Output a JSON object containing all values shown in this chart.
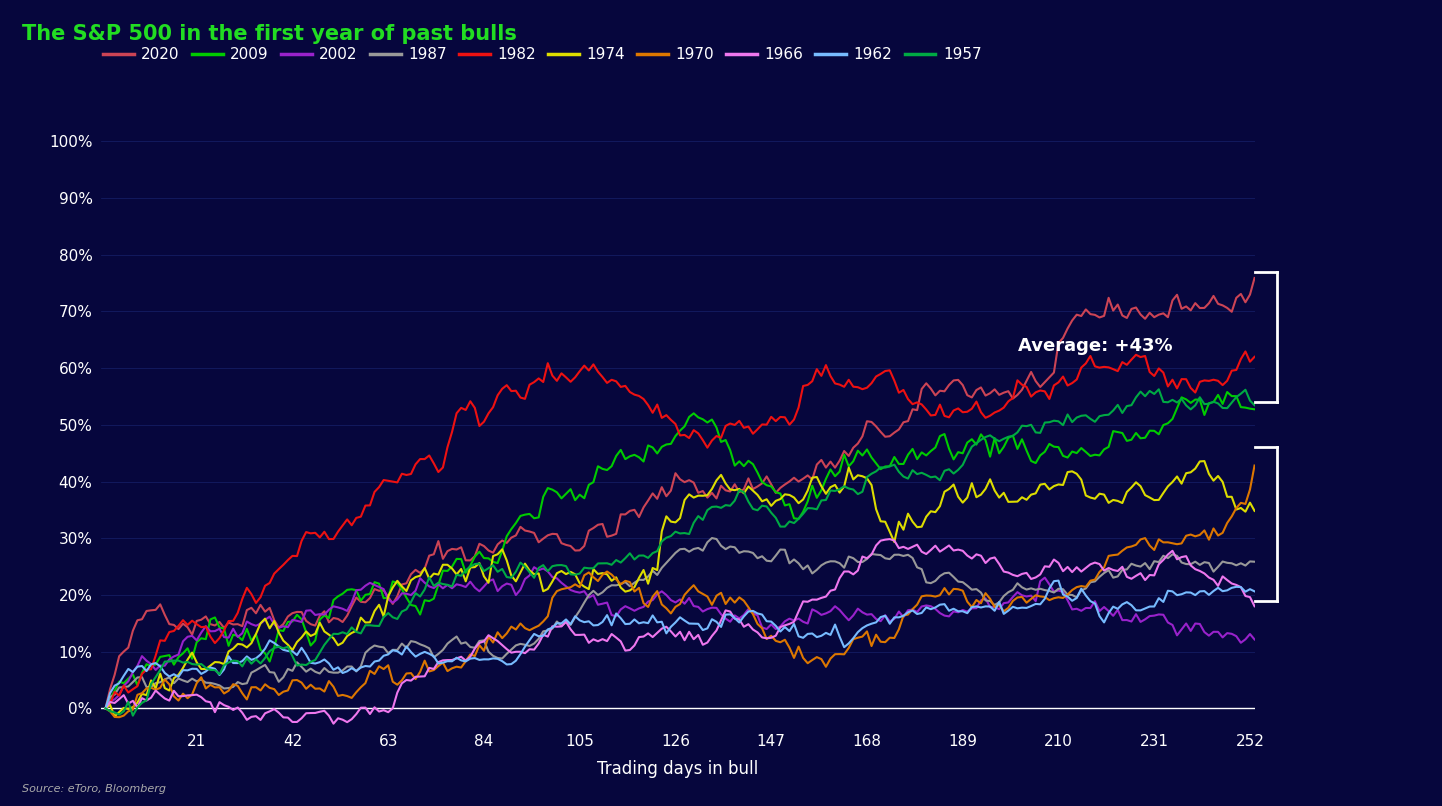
{
  "title": "The S&P 500 in the first year of past bulls",
  "xlabel": "Trading days in bull",
  "source": "Source: eToro, Bloomberg",
  "background_color": "#06063d",
  "title_color": "#22dd22",
  "text_color": "#ffffff",
  "ylim_min": -0.03,
  "ylim_max": 1.05,
  "xlim_min": 0,
  "xlim_max": 253,
  "ytick_vals": [
    0.0,
    0.1,
    0.2,
    0.3,
    0.4,
    0.5,
    0.6,
    0.7,
    0.8,
    0.9,
    1.0
  ],
  "xtick_vals": [
    21,
    42,
    63,
    84,
    105,
    126,
    147,
    168,
    189,
    210,
    231,
    252
  ],
  "legend_order": [
    "2020",
    "2009",
    "2002",
    "1987",
    "1982",
    "1974",
    "1970",
    "1966",
    "1962",
    "1957"
  ],
  "colors": {
    "2020": "#cc4455",
    "2009": "#00cc00",
    "2002": "#9922cc",
    "1987": "#999999",
    "1982": "#ee1111",
    "1974": "#dddd00",
    "1970": "#dd7700",
    "1966": "#ee77ee",
    "1962": "#77bbff",
    "1957": "#00aa44"
  },
  "annotation": "Average: +43%",
  "annotation_color": "#ffffff",
  "bracket_upper_lo": 0.54,
  "bracket_upper_hi": 0.77,
  "bracket_lower_lo": 0.19,
  "bracket_lower_hi": 0.46
}
